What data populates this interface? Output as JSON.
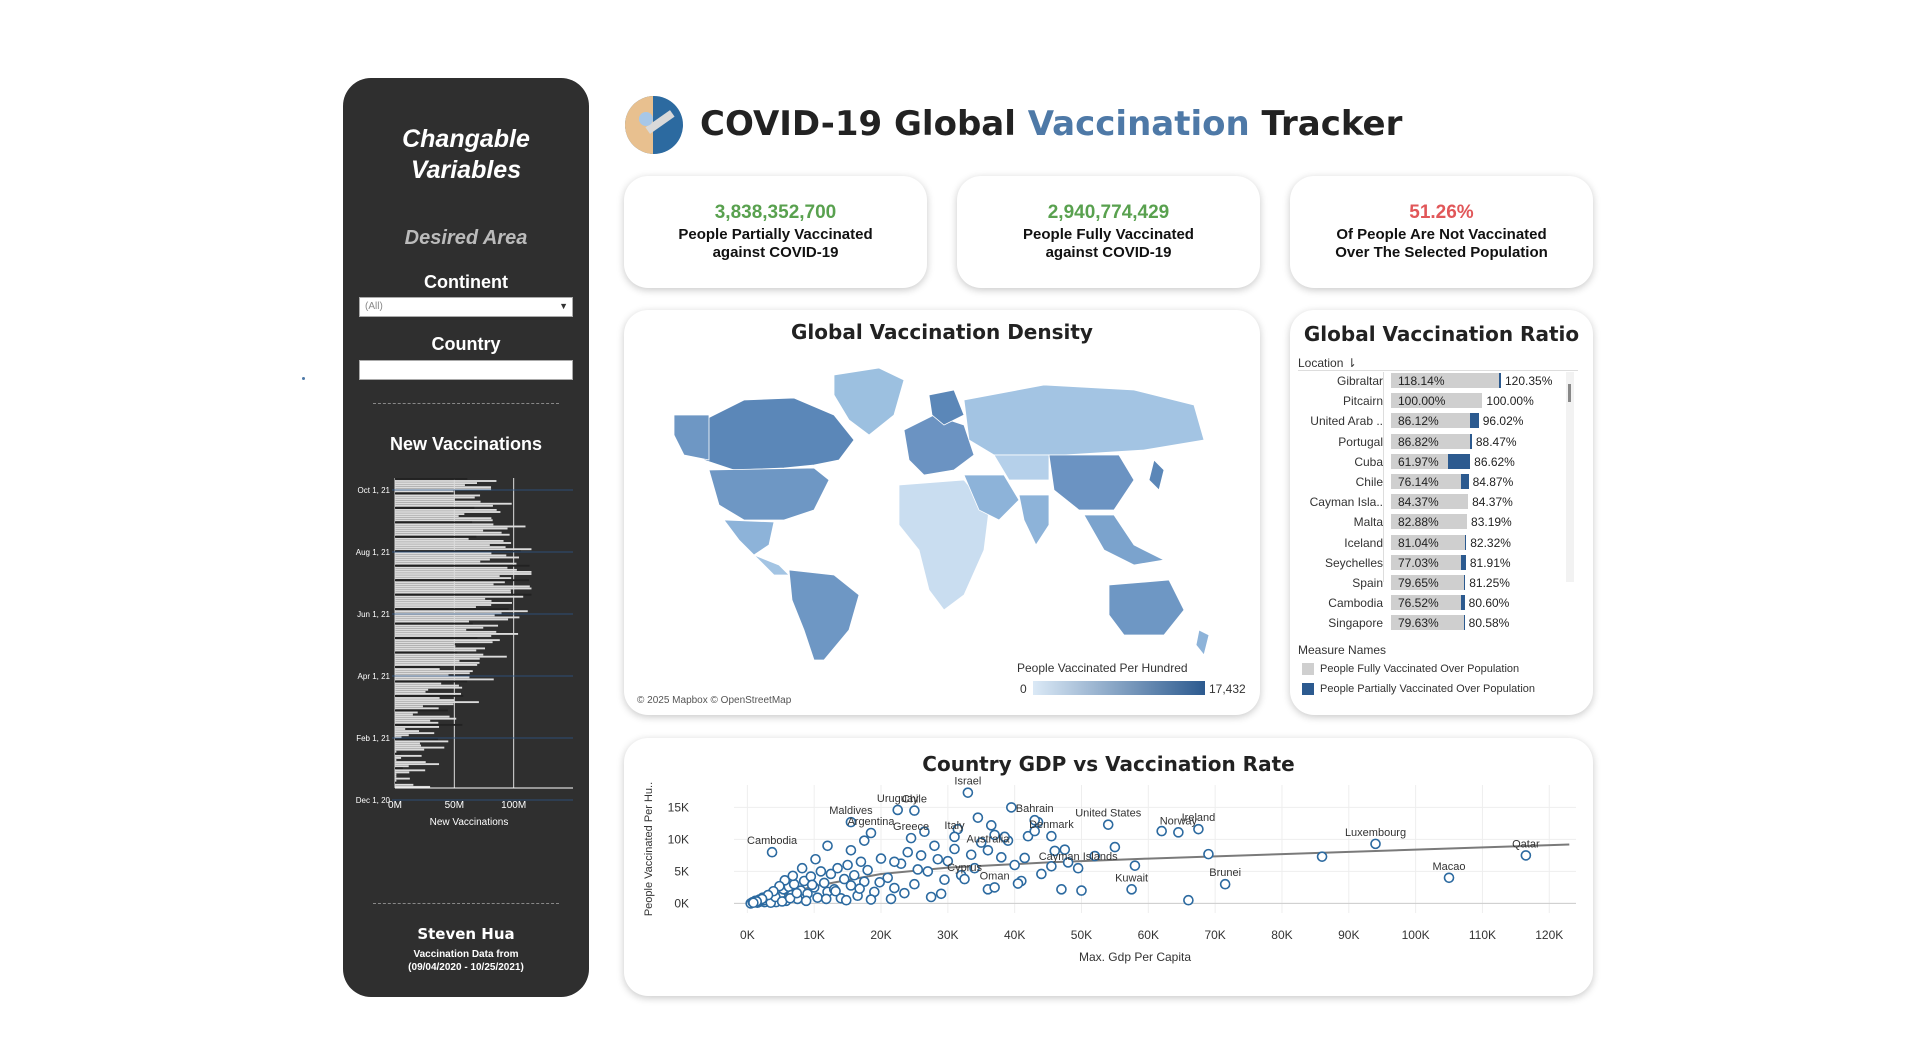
{
  "header": {
    "title_part1": "COVID-19 Global ",
    "title_part2": "Vaccination",
    "title_part3": " Tracker",
    "accent": "#4e79a7"
  },
  "sidebar": {
    "title_line1": "Changable",
    "title_line2": "Variables",
    "section": "Desired Area",
    "continent_label": "Continent",
    "continent_value": "(All)",
    "country_label": "Country",
    "country_value": "",
    "chart_title": "New Vaccinations",
    "chart_xlabel": "New Vaccinations",
    "author": "Steven Hua",
    "footer_line1": "Vaccination Data from",
    "footer_line2": "(09/04/2020 - 10/25/2021)"
  },
  "kpis": [
    {
      "value": "3,838,352,700",
      "line1": "People Partially Vaccinated",
      "line2": "against COVID-19",
      "color": "#59a14f"
    },
    {
      "value": "2,940,774,429",
      "line1": "People Fully Vaccinated",
      "line2": "against COVID-19",
      "color": "#59a14f"
    },
    {
      "value": "51.26%",
      "line1": "Of People Are Not Vaccinated",
      "line2": "Over The Selected Population",
      "color": "#e15759"
    }
  ],
  "map": {
    "title": "Global Vaccination Density",
    "attribution": "© 2025 Mapbox © OpenStreetMap",
    "legend_title": "People Vaccinated Per Hundred",
    "legend_min": "0",
    "legend_max": "17,432"
  },
  "ratio": {
    "title": "Global Vaccination Ratio",
    "column_label": "Location",
    "measure_title": "Measure Names",
    "measure_full": "People Fully Vaccinated Over Population",
    "measure_partial": "People Partially Vaccinated Over Population",
    "rows": [
      {
        "name": "Gibraltar",
        "full": 118.14,
        "partial": 120.35,
        "full_label": "118.14%",
        "partial_label": "120.35%"
      },
      {
        "name": "Pitcairn",
        "full": 100.0,
        "partial": 100.0,
        "full_label": "100.00%",
        "partial_label": "100.00%"
      },
      {
        "name": "United Arab ..",
        "full": 86.12,
        "partial": 96.02,
        "full_label": "86.12%",
        "partial_label": "96.02%"
      },
      {
        "name": "Portugal",
        "full": 86.82,
        "partial": 88.47,
        "full_label": "86.82%",
        "partial_label": "88.47%"
      },
      {
        "name": "Cuba",
        "full": 61.97,
        "partial": 86.62,
        "full_label": "61.97%",
        "partial_label": "86.62%"
      },
      {
        "name": "Chile",
        "full": 76.14,
        "partial": 84.87,
        "full_label": "76.14%",
        "partial_label": "84.87%"
      },
      {
        "name": "Cayman Isla..",
        "full": 84.37,
        "partial": 84.37,
        "full_label": "84.37%",
        "partial_label": "84.37%"
      },
      {
        "name": "Malta",
        "full": 82.88,
        "partial": 83.19,
        "full_label": "82.88%",
        "partial_label": "83.19%"
      },
      {
        "name": "Iceland",
        "full": 81.04,
        "partial": 82.32,
        "full_label": "81.04%",
        "partial_label": "82.32%"
      },
      {
        "name": "Seychelles",
        "full": 77.03,
        "partial": 81.91,
        "full_label": "77.03%",
        "partial_label": "81.91%"
      },
      {
        "name": "Spain",
        "full": 79.65,
        "partial": 81.25,
        "full_label": "79.65%",
        "partial_label": "81.25%"
      },
      {
        "name": "Cambodia",
        "full": 76.52,
        "partial": 80.6,
        "full_label": "76.52%",
        "partial_label": "80.60%"
      },
      {
        "name": "Singapore",
        "full": 79.63,
        "partial": 80.58,
        "full_label": "79.63%",
        "partial_label": "80.58%"
      }
    ]
  },
  "chart_data": [
    {
      "type": "bar",
      "title": "New Vaccinations",
      "xlabel": "New Vaccinations",
      "orientation": "horizontal",
      "xlim": [
        0,
        150000000
      ],
      "xticks": [
        "0M",
        "50M",
        "100M"
      ],
      "yticks": [
        "Oct 1, 21",
        "Aug 1, 21",
        "Jun 1, 21",
        "Apr 1, 21",
        "Feb 1, 21",
        "Dec 1, 20"
      ]
    },
    {
      "type": "scatter",
      "title": "Country GDP vs Vaccination Rate",
      "xlabel": "Max. Gdp Per Capita",
      "ylabel": "People Vaccinated Per Hu..",
      "xlim": [
        -2000,
        124000
      ],
      "ylim": [
        -1500,
        18500
      ],
      "xticks": [
        "0K",
        "10K",
        "20K",
        "30K",
        "40K",
        "50K",
        "60K",
        "70K",
        "80K",
        "90K",
        "100K",
        "110K",
        "120K"
      ],
      "yticks": [
        "0K",
        "5K",
        "10K",
        "15K"
      ],
      "trend": [
        [
          1000,
          0
        ],
        [
          10000,
          2700
        ],
        [
          20000,
          4600
        ],
        [
          30000,
          5600
        ],
        [
          45000,
          6400
        ],
        [
          60000,
          7000
        ],
        [
          80000,
          7700
        ],
        [
          100000,
          8400
        ],
        [
          123000,
          9200
        ]
      ],
      "labeled_points": [
        {
          "label": "Israel",
          "x": 33000,
          "y": 17300
        },
        {
          "label": "Uruguay",
          "x": 22500,
          "y": 14600
        },
        {
          "label": "Chile",
          "x": 25000,
          "y": 14500
        },
        {
          "label": "Bahrain",
          "x": 43000,
          "y": 13000
        },
        {
          "label": "Maldives",
          "x": 15500,
          "y": 12700
        },
        {
          "label": "United States",
          "x": 54000,
          "y": 12300
        },
        {
          "label": "Ireland",
          "x": 67500,
          "y": 11600
        },
        {
          "label": "Argentina",
          "x": 18500,
          "y": 11000
        },
        {
          "label": "Greece",
          "x": 24500,
          "y": 10200
        },
        {
          "label": "Italy",
          "x": 31000,
          "y": 10400
        },
        {
          "label": "Denmark",
          "x": 45500,
          "y": 10500
        },
        {
          "label": "Cambodia",
          "x": 3700,
          "y": 8000
        },
        {
          "label": "Norway",
          "x": 64500,
          "y": 11100
        },
        {
          "label": "Luxembourg",
          "x": 94000,
          "y": 9300
        },
        {
          "label": "Australia",
          "x": 36000,
          "y": 8300
        },
        {
          "label": "Qatar",
          "x": 116500,
          "y": 7500
        },
        {
          "label": "Cayman Islands",
          "x": 49500,
          "y": 5500
        },
        {
          "label": "Cyprus",
          "x": 32500,
          "y": 3800
        },
        {
          "label": "Oman",
          "x": 37000,
          "y": 2500
        },
        {
          "label": "Kuwait",
          "x": 57500,
          "y": 2200
        },
        {
          "label": "Brunei",
          "x": 71500,
          "y": 3000
        },
        {
          "label": "Macao",
          "x": 105000,
          "y": 4000
        }
      ],
      "points": [
        [
          500,
          0
        ],
        [
          800,
          200
        ],
        [
          1200,
          400
        ],
        [
          1500,
          100
        ],
        [
          1800,
          600
        ],
        [
          2000,
          300
        ],
        [
          2300,
          900
        ],
        [
          2600,
          200
        ],
        [
          3000,
          1200
        ],
        [
          3300,
          500
        ],
        [
          3600,
          1500
        ],
        [
          4000,
          800
        ],
        [
          4300,
          200
        ],
        [
          4600,
          1800
        ],
        [
          5000,
          1000
        ],
        [
          5400,
          2200
        ],
        [
          5800,
          400
        ],
        [
          6200,
          2600
        ],
        [
          6600,
          1300
        ],
        [
          7000,
          3000
        ],
        [
          7500,
          700
        ],
        [
          8000,
          2000
        ],
        [
          8500,
          3500
        ],
        [
          9000,
          1500
        ],
        [
          9500,
          4200
        ],
        [
          10000,
          2500
        ],
        [
          10500,
          900
        ],
        [
          11000,
          5000
        ],
        [
          11500,
          3200
        ],
        [
          12000,
          1800
        ],
        [
          12500,
          4600
        ],
        [
          13000,
          2200
        ],
        [
          13500,
          5500
        ],
        [
          14000,
          800
        ],
        [
          14500,
          3800
        ],
        [
          15000,
          6000
        ],
        [
          15500,
          2800
        ],
        [
          16000,
          4400
        ],
        [
          16500,
          1200
        ],
        [
          17000,
          6500
        ],
        [
          17500,
          3400
        ],
        [
          18000,
          5200
        ],
        [
          19000,
          1800
        ],
        [
          20000,
          7000
        ],
        [
          21000,
          4000
        ],
        [
          22000,
          2400
        ],
        [
          23000,
          6200
        ],
        [
          24000,
          8000
        ],
        [
          25000,
          3000
        ],
        [
          26000,
          7500
        ],
        [
          27000,
          5000
        ],
        [
          28000,
          9000
        ],
        [
          29000,
          1500
        ],
        [
          30000,
          6600
        ],
        [
          31000,
          8500
        ],
        [
          32000,
          4400
        ],
        [
          34000,
          5500
        ],
        [
          35000,
          9500
        ],
        [
          36000,
          2200
        ],
        [
          38000,
          7200
        ],
        [
          39000,
          9800
        ],
        [
          40000,
          6000
        ],
        [
          41000,
          3500
        ],
        [
          42000,
          10500
        ],
        [
          43000,
          11300
        ],
        [
          44000,
          4600
        ],
        [
          46000,
          8200
        ],
        [
          47000,
          2200
        ],
        [
          48000,
          6400
        ],
        [
          50000,
          2000
        ],
        [
          52000,
          7400
        ],
        [
          55000,
          8800
        ],
        [
          58000,
          5900
        ],
        [
          62000,
          11300
        ],
        [
          66000,
          500
        ],
        [
          69000,
          7700
        ],
        [
          86000,
          7300
        ],
        [
          2500,
          500
        ],
        [
          3500,
          100
        ],
        [
          4200,
          1000
        ],
        [
          5200,
          300
        ],
        [
          6400,
          800
        ],
        [
          7400,
          1600
        ],
        [
          8800,
          400
        ],
        [
          9700,
          2900
        ],
        [
          11800,
          700
        ],
        [
          13200,
          1900
        ],
        [
          14800,
          500
        ],
        [
          16800,
          2300
        ],
        [
          18500,
          600
        ],
        [
          19800,
          3300
        ],
        [
          21500,
          700
        ],
        [
          23500,
          1600
        ],
        [
          25500,
          5300
        ],
        [
          27500,
          1000
        ],
        [
          29500,
          3700
        ],
        [
          33500,
          7600
        ],
        [
          37000,
          10700
        ],
        [
          41500,
          7100
        ],
        [
          45500,
          5800
        ],
        [
          36500,
          12200
        ],
        [
          39500,
          15000
        ],
        [
          43500,
          12700
        ],
        [
          47500,
          8400
        ],
        [
          12000,
          9000
        ],
        [
          17500,
          9800
        ],
        [
          22000,
          6500
        ],
        [
          26500,
          11200
        ],
        [
          31500,
          11600
        ],
        [
          34500,
          13400
        ],
        [
          38500,
          10400
        ],
        [
          40500,
          3100
        ],
        [
          28500,
          6900
        ],
        [
          15500,
          8300
        ],
        [
          10200,
          6900
        ],
        [
          8200,
          5500
        ],
        [
          6800,
          4300
        ],
        [
          5600,
          3600
        ],
        [
          4800,
          2700
        ],
        [
          3900,
          1900
        ],
        [
          3100,
          1300
        ],
        [
          2200,
          700
        ],
        [
          1400,
          300
        ],
        [
          900,
          100
        ]
      ]
    }
  ]
}
